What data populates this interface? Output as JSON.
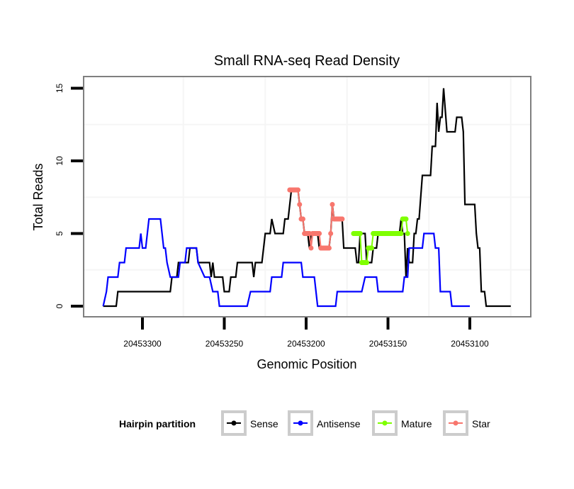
{
  "chart_data": {
    "type": "line",
    "title": "Small RNA-seq Read Density",
    "xlabel": "Genomic Position",
    "ylabel": "Total Reads",
    "x_reversed": true,
    "xlim": [
      20453335,
      20453065
    ],
    "ylim": [
      -0.7,
      15.9
    ],
    "x_ticks": [
      20453300,
      20453250,
      20453200,
      20453150,
      20453100
    ],
    "x_tick_labels": [
      "20453300",
      "20453250",
      "20453200",
      "20453150",
      "20453100"
    ],
    "y_ticks": [
      0,
      5,
      10,
      15
    ],
    "y_tick_labels": [
      "0",
      "5",
      "10",
      "15"
    ],
    "grid": true,
    "legend": {
      "title": "Hairpin partition",
      "position": "bottom",
      "entries": [
        {
          "label": "Sense",
          "color": "#000000"
        },
        {
          "label": "Antisense",
          "color": "#0000ff"
        },
        {
          "label": "Mature",
          "color": "#7fff00"
        },
        {
          "label": "Star",
          "color": "#f8766d"
        }
      ]
    },
    "series": [
      {
        "name": "Sense",
        "color": "#000000",
        "points": [
          [
            20453324,
            0
          ],
          [
            20453316,
            0
          ],
          [
            20453315,
            1
          ],
          [
            20453283,
            1
          ],
          [
            20453282,
            2
          ],
          [
            20453279,
            2
          ],
          [
            20453278,
            3
          ],
          [
            20453272,
            3
          ],
          [
            20453271,
            4
          ],
          [
            20453267,
            4
          ],
          [
            20453266,
            3
          ],
          [
            20453259,
            3
          ],
          [
            20453258,
            2
          ],
          [
            20453257,
            3
          ],
          [
            20453256,
            2
          ],
          [
            20453251,
            2
          ],
          [
            20453250,
            1
          ],
          [
            20453247,
            1
          ],
          [
            20453246,
            2
          ],
          [
            20453243,
            2
          ],
          [
            20453242,
            3
          ],
          [
            20453233,
            3
          ],
          [
            20453232,
            2
          ],
          [
            20453231,
            3
          ],
          [
            20453227,
            3
          ],
          [
            20453225,
            5
          ],
          [
            20453222,
            5
          ],
          [
            20453221,
            6
          ],
          [
            20453219,
            5
          ],
          [
            20453214,
            5
          ],
          [
            20453213,
            6
          ],
          [
            20453211,
            6
          ],
          [
            20453209,
            8
          ],
          [
            20453205,
            8
          ],
          [
            20453204,
            7
          ],
          [
            20453203,
            6
          ],
          [
            20453202,
            6
          ],
          [
            20453201,
            5
          ],
          [
            20453199,
            5
          ],
          [
            20453198,
            4
          ],
          [
            20453197,
            5
          ],
          [
            20453193,
            5
          ],
          [
            20453192,
            4
          ],
          [
            20453186,
            4
          ],
          [
            20453185,
            5
          ],
          [
            20453184,
            7
          ],
          [
            20453183,
            6
          ],
          [
            20453178,
            6
          ],
          [
            20453177,
            4
          ],
          [
            20453170,
            4
          ],
          [
            20453169,
            3
          ],
          [
            20453168,
            3
          ],
          [
            20453167,
            5
          ],
          [
            20453164,
            5
          ],
          [
            20453163,
            3
          ],
          [
            20453160,
            3
          ],
          [
            20453159,
            4
          ],
          [
            20453157,
            4
          ],
          [
            20453156,
            5
          ],
          [
            20453143,
            5
          ],
          [
            20453142,
            6
          ],
          [
            20453141,
            5
          ],
          [
            20453140,
            5
          ],
          [
            20453139,
            2
          ],
          [
            20453138,
            4
          ],
          [
            20453137,
            3
          ],
          [
            20453135,
            3
          ],
          [
            20453134,
            5
          ],
          [
            20453133,
            5
          ],
          [
            20453132,
            6
          ],
          [
            20453131,
            6
          ],
          [
            20453129,
            9
          ],
          [
            20453124,
            9
          ],
          [
            20453123,
            11
          ],
          [
            20453121,
            11
          ],
          [
            20453120,
            14
          ],
          [
            20453119,
            12
          ],
          [
            20453118,
            13
          ],
          [
            20453117,
            13
          ],
          [
            20453116,
            15
          ],
          [
            20453114,
            12
          ],
          [
            20453109,
            12
          ],
          [
            20453108,
            13
          ],
          [
            20453105,
            13
          ],
          [
            20453104,
            12
          ],
          [
            20453103,
            7
          ],
          [
            20453097,
            7
          ],
          [
            20453096,
            5
          ],
          [
            20453095,
            4
          ],
          [
            20453094,
            4
          ],
          [
            20453093,
            1
          ],
          [
            20453091,
            1
          ],
          [
            20453090,
            0
          ],
          [
            20453075,
            0
          ]
        ]
      },
      {
        "name": "Antisense",
        "color": "#0000ff",
        "points": [
          [
            20453324,
            0
          ],
          [
            20453322,
            1
          ],
          [
            20453321,
            2
          ],
          [
            20453315,
            2
          ],
          [
            20453314,
            3
          ],
          [
            20453311,
            3
          ],
          [
            20453310,
            4
          ],
          [
            20453302,
            4
          ],
          [
            20453301,
            5
          ],
          [
            20453300,
            4
          ],
          [
            20453298,
            4
          ],
          [
            20453296,
            6
          ],
          [
            20453289,
            6
          ],
          [
            20453287,
            4
          ],
          [
            20453286,
            4
          ],
          [
            20453285,
            3
          ],
          [
            20453283,
            2
          ],
          [
            20453278,
            2
          ],
          [
            20453277,
            3
          ],
          [
            20453276,
            3
          ],
          [
            20453274,
            3
          ],
          [
            20453273,
            4
          ],
          [
            20453267,
            4
          ],
          [
            20453266,
            3
          ],
          [
            20453262,
            2
          ],
          [
            20453259,
            2
          ],
          [
            20453257,
            1
          ],
          [
            20453254,
            1
          ],
          [
            20453253,
            0
          ],
          [
            20453236,
            0
          ],
          [
            20453234,
            1
          ],
          [
            20453222,
            1
          ],
          [
            20453221,
            2
          ],
          [
            20453215,
            2
          ],
          [
            20453214,
            3
          ],
          [
            20453203,
            3
          ],
          [
            20453202,
            2
          ],
          [
            20453195,
            2
          ],
          [
            20453193,
            0
          ],
          [
            20453182,
            0
          ],
          [
            20453181,
            1
          ],
          [
            20453166,
            1
          ],
          [
            20453164,
            2
          ],
          [
            20453157,
            2
          ],
          [
            20453156,
            1
          ],
          [
            20453141,
            1
          ],
          [
            20453140,
            2
          ],
          [
            20453138,
            2
          ],
          [
            20453137,
            4
          ],
          [
            20453129,
            4
          ],
          [
            20453128,
            5
          ],
          [
            20453122,
            5
          ],
          [
            20453121,
            4
          ],
          [
            20453119,
            4
          ],
          [
            20453118,
            1
          ],
          [
            20453112,
            1
          ],
          [
            20453111,
            0
          ],
          [
            20453100,
            0
          ]
        ]
      },
      {
        "name": "Mature",
        "color": "#7fff00",
        "points": [
          [
            20453171,
            5
          ],
          [
            20453167,
            5
          ],
          [
            20453166,
            3
          ],
          [
            20453163,
            3
          ],
          [
            20453162,
            4
          ],
          [
            20453160,
            4
          ],
          [
            20453159,
            5
          ],
          [
            20453142,
            5
          ],
          [
            20453141,
            6
          ],
          [
            20453139,
            6
          ],
          [
            20453138,
            5
          ]
        ]
      },
      {
        "name": "Star",
        "color": "#f8766d",
        "points": [
          [
            20453210,
            8
          ],
          [
            20453205,
            8
          ],
          [
            20453204,
            7
          ],
          [
            20453203,
            6
          ],
          [
            20453202,
            6
          ],
          [
            20453201,
            5
          ],
          [
            20453198,
            5
          ],
          [
            20453197,
            4
          ],
          [
            20453196,
            5
          ],
          [
            20453192,
            5
          ],
          [
            20453191,
            4
          ],
          [
            20453186,
            4
          ],
          [
            20453185,
            5
          ],
          [
            20453184,
            7
          ],
          [
            20453183,
            6
          ],
          [
            20453178,
            6
          ]
        ]
      }
    ]
  }
}
